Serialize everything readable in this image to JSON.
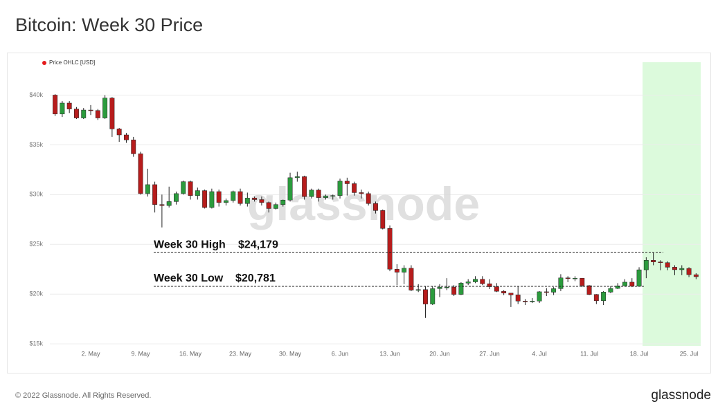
{
  "chart_data": {
    "type": "candlestick",
    "title": "Bitcoin: Week 30 Price",
    "categories": [
      null,
      null,
      null,
      null,
      null,
      "2. May",
      null,
      null,
      null,
      null,
      null,
      null,
      "9. May",
      null,
      null,
      null,
      null,
      null,
      null,
      "16. May",
      null,
      null,
      null,
      null,
      null,
      null,
      "23. May",
      null,
      null,
      null,
      null,
      null,
      null,
      "30. May",
      null,
      null,
      null,
      null,
      null,
      null,
      "6. Jun",
      null,
      null,
      null,
      null,
      null,
      null,
      "13. Jun",
      null,
      null,
      null,
      null,
      null,
      null,
      "20. Jun",
      null,
      null,
      null,
      null,
      null,
      null,
      "27. Jun",
      null,
      null,
      null,
      null,
      null,
      null,
      "4. Jul",
      null,
      null,
      null,
      null,
      null,
      null,
      "11. Jul",
      null,
      null,
      null,
      null,
      null,
      null,
      "18. Jul",
      null,
      null,
      null,
      null,
      null,
      null,
      "25. Jul",
      null
    ],
    "series": [
      {
        "name": "Price OHLC [USD]",
        "color": "#e41a1c",
        "up_color": "#2b9b3d",
        "down_color": "#b71c1c",
        "open": [
          40000,
          38100,
          39200,
          38600,
          37700,
          38500,
          38450,
          37700,
          39700,
          36600,
          36000,
          35500,
          34100,
          30100,
          31000,
          29000,
          28900,
          29300,
          30100,
          31300,
          29900,
          30400,
          28700,
          30300,
          29200,
          29400,
          30300,
          29100,
          29650,
          29500,
          29200,
          28600,
          29000,
          29450,
          31700,
          31800,
          29800,
          30450,
          29700,
          29850,
          29900,
          31350,
          31100,
          30200,
          30100,
          29100,
          28400,
          26600,
          22500,
          22200,
          22600,
          20400,
          20450,
          19000,
          20550,
          20700,
          20700,
          19970,
          21100,
          21230,
          21490,
          21040,
          20740,
          20280,
          20100,
          19920,
          19300,
          19250,
          19300,
          20230,
          20190,
          20550,
          21630,
          21590,
          21600,
          20850,
          19960,
          19330,
          20200,
          20570,
          20830,
          21200,
          20790,
          22440,
          23400,
          23230,
          23160,
          22700,
          22450,
          22580,
          21950
        ],
        "high": [
          40100,
          39400,
          39400,
          38800,
          38700,
          39000,
          38600,
          40000,
          39800,
          36700,
          36200,
          35800,
          34300,
          32600,
          31300,
          30000,
          30800,
          30300,
          31400,
          31400,
          30700,
          30500,
          30600,
          30500,
          29600,
          30400,
          30600,
          30200,
          29800,
          29800,
          29300,
          29200,
          29500,
          32200,
          32300,
          31900,
          30600,
          30600,
          30000,
          30000,
          31600,
          31700,
          31300,
          30500,
          30300,
          29300,
          28500,
          26900,
          23000,
          22900,
          22900,
          21000,
          20800,
          20800,
          21000,
          21600,
          20900,
          21200,
          21500,
          21800,
          21800,
          21500,
          21100,
          20400,
          20100,
          20800,
          19500,
          19600,
          20300,
          20600,
          20700,
          22000,
          21800,
          21800,
          21600,
          20900,
          20000,
          20300,
          20800,
          21100,
          21500,
          21600,
          22700,
          23700,
          24179,
          23400,
          23300,
          22900,
          22900,
          22700,
          22100
        ],
        "low": [
          37900,
          37800,
          38200,
          37600,
          37600,
          38000,
          37500,
          37600,
          35800,
          35300,
          35200,
          33800,
          30000,
          29800,
          28200,
          26700,
          28700,
          29000,
          30000,
          29500,
          29500,
          28600,
          28600,
          28800,
          28900,
          29200,
          28900,
          28800,
          29300,
          28900,
          28200,
          28500,
          28800,
          29300,
          31300,
          29500,
          29600,
          29300,
          29500,
          29500,
          29600,
          29900,
          29900,
          29600,
          28900,
          28100,
          26500,
          22300,
          20900,
          21000,
          20300,
          20200,
          17600,
          18900,
          19700,
          20400,
          19800,
          19900,
          20900,
          21100,
          20900,
          20500,
          20200,
          19900,
          18700,
          19000,
          18900,
          19100,
          19100,
          19800,
          19900,
          20300,
          21200,
          21300,
          20700,
          19900,
          19000,
          18900,
          20100,
          20500,
          20800,
          20700,
          20781,
          21600,
          22900,
          22400,
          22400,
          21900,
          21900,
          21700,
          21500
        ],
        "close": [
          38100,
          39200,
          38600,
          37700,
          38500,
          38450,
          37700,
          39700,
          36600,
          36000,
          35500,
          34100,
          30100,
          31000,
          29000,
          28900,
          29300,
          30100,
          31300,
          29900,
          30400,
          28700,
          30300,
          29200,
          29400,
          30300,
          29100,
          29650,
          29500,
          29200,
          28600,
          29000,
          29450,
          31700,
          31800,
          29800,
          30450,
          29700,
          29850,
          29900,
          31350,
          31100,
          30200,
          30100,
          29100,
          28400,
          26600,
          22500,
          22200,
          22600,
          20400,
          20450,
          19000,
          20550,
          20700,
          20700,
          19970,
          21100,
          21230,
          21490,
          21040,
          20740,
          20280,
          20100,
          19920,
          19300,
          19250,
          19300,
          20230,
          20190,
          20550,
          21630,
          21590,
          21600,
          20850,
          19960,
          19330,
          20200,
          20570,
          20830,
          21200,
          20790,
          22440,
          23400,
          23230,
          23160,
          22700,
          22450,
          22580,
          21950,
          21750
        ]
      }
    ],
    "ylim": [
      14800,
      43300
    ],
    "yticks": [
      {
        "value": 15000,
        "label": "$15k"
      },
      {
        "value": 20000,
        "label": "$20k"
      },
      {
        "value": 25000,
        "label": "$25k"
      },
      {
        "value": 30000,
        "label": "$30k"
      },
      {
        "value": 35000,
        "label": "$35k"
      },
      {
        "value": 40000,
        "label": "$40k"
      }
    ],
    "grid": true,
    "highlight_from": "18. Jul",
    "highlight_color": "#dcfadc",
    "annotations": [
      {
        "label": "Week 30 High",
        "value_label": "$24,179",
        "value": 24179
      },
      {
        "label": "Week 30 Low",
        "value_label": "$20,781",
        "value": 20781
      }
    ],
    "watermark": "glassnode"
  },
  "footer": {
    "copyright": "© 2022 Glassnode. All Rights Reserved.",
    "logo": "glassnode"
  }
}
